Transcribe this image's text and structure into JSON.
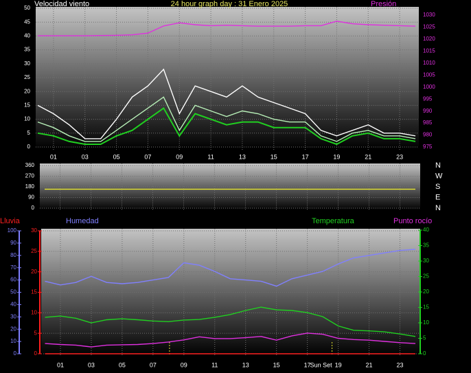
{
  "chart_data": [
    {
      "type": "line",
      "title": "24 hour graph day : 31 Enero 2025",
      "ylabel": "Velocidad viento",
      "y2label": "Presión",
      "x": [
        0,
        1,
        2,
        3,
        4,
        5,
        6,
        7,
        8,
        9,
        10,
        11,
        12,
        13,
        14,
        15,
        16,
        17,
        18,
        19,
        20,
        21,
        22,
        23,
        24
      ],
      "xlim": [
        0,
        24
      ],
      "xticks": [
        {
          "value": 1,
          "label": "01"
        },
        {
          "value": 3,
          "label": "03"
        },
        {
          "value": 5,
          "label": "05"
        },
        {
          "value": 7,
          "label": "07"
        },
        {
          "value": 9,
          "label": "09"
        },
        11,
        13,
        15,
        17,
        19,
        21,
        23
      ],
      "ylim": [
        0,
        50
      ],
      "yticks": [
        0,
        5,
        10,
        15,
        20,
        25,
        30,
        35,
        40,
        45,
        50
      ],
      "y2lim": [
        975,
        1033
      ],
      "y2ticks": [
        975,
        980,
        985,
        990,
        995,
        1000,
        1005,
        1010,
        1015,
        1020,
        1025,
        1030
      ],
      "grid": true,
      "series": [
        {
          "color": "#ffffff",
          "values": [
            15,
            12,
            8,
            3,
            3,
            10,
            18,
            22,
            28,
            12,
            22,
            20,
            18,
            22,
            18,
            16,
            14,
            12,
            6,
            4,
            6,
            8,
            5,
            5,
            4
          ]
        },
        {
          "color": "#b8f0b8",
          "values": [
            9,
            7,
            4,
            2,
            2,
            6,
            10,
            14,
            18,
            6,
            15,
            13,
            11,
            13,
            12,
            10,
            9,
            9,
            4,
            2,
            5,
            6,
            4,
            4,
            3
          ]
        },
        {
          "color": "#20d020",
          "values": [
            5,
            4,
            2,
            1,
            1,
            4,
            6,
            10,
            14,
            4,
            12,
            10,
            8,
            9,
            9,
            7,
            7,
            7,
            3,
            1,
            4,
            5,
            3,
            3,
            2
          ]
        },
        {
          "color": "#e030e0",
          "axis": "y2",
          "values": [
            1021.4,
            1021.4,
            1021.4,
            1021.4,
            1021.5,
            1021.6,
            1021.8,
            1022.5,
            1025.5,
            1026.8,
            1026,
            1025.6,
            1025.8,
            1025.6,
            1025.4,
            1025.4,
            1025.4,
            1025.6,
            1025.6,
            1027.5,
            1026.4,
            1026,
            1025.8,
            1025.6,
            1025.4
          ]
        }
      ]
    },
    {
      "type": "line",
      "x": [
        0,
        24
      ],
      "xlim": [
        0,
        24
      ],
      "xticks": [
        1,
        3,
        5,
        7,
        9,
        11,
        13,
        15,
        17,
        19,
        21,
        23
      ],
      "ylim": [
        0,
        360
      ],
      "yticks": [
        0,
        90,
        180,
        270,
        360
      ],
      "y2lim": [
        0,
        360
      ],
      "y2ticks": [
        {
          "value": 360,
          "label": "N"
        },
        {
          "value": 270,
          "label": "W"
        },
        {
          "value": 180,
          "label": "S"
        },
        {
          "value": 90,
          "label": "E"
        },
        {
          "value": 0,
          "label": "N"
        }
      ],
      "grid": true,
      "series": [
        {
          "color": "#e8e830",
          "values": [
            160,
            160
          ]
        }
      ]
    },
    {
      "type": "line",
      "x": [
        0,
        1,
        2,
        3,
        4,
        5,
        6,
        7,
        8,
        9,
        10,
        11,
        12,
        13,
        14,
        15,
        16,
        17,
        18,
        19,
        20,
        21,
        22,
        23,
        24
      ],
      "xlim": [
        0,
        24
      ],
      "xticks": [
        {
          "value": 1,
          "label": "01"
        },
        {
          "value": 3,
          "label": "03"
        },
        {
          "value": 5,
          "label": "05"
        },
        {
          "value": 7,
          "label": "07"
        },
        {
          "value": 9,
          "label": "09"
        },
        11,
        13,
        15,
        17,
        19,
        21,
        23
      ],
      "ylim": [
        0,
        30
      ],
      "yticks": [
        0,
        5,
        10,
        15,
        20,
        25,
        30
      ],
      "y2lim": [
        0,
        40
      ],
      "y2ticks": [
        0,
        5,
        10,
        15,
        20,
        25,
        30,
        35,
        40
      ],
      "y3lim": [
        0,
        100
      ],
      "y3ticks": [
        0,
        10,
        20,
        30,
        40,
        50,
        60,
        70,
        80,
        90,
        100
      ],
      "grid": true,
      "vlines": [
        {
          "x": 8.07
        },
        {
          "x": 18.6,
          "label": "Sun Set"
        }
      ],
      "series": [
        {
          "name": "Lluvia",
          "color": "#ff2020",
          "axis": "y",
          "values": [
            0,
            0,
            0,
            0,
            0,
            0,
            0,
            0,
            0,
            0,
            0,
            0,
            0,
            0,
            0,
            0,
            0,
            0,
            0,
            0,
            0,
            0,
            0,
            0,
            0
          ]
        },
        {
          "name": "Humedad",
          "color": "#8080ff",
          "axis": "y3",
          "values": [
            59,
            56,
            58,
            63,
            58,
            57,
            58,
            60,
            62,
            74,
            72,
            67,
            61,
            60,
            59,
            55,
            61,
            64,
            67,
            73,
            78,
            80,
            82,
            84,
            85
          ]
        },
        {
          "name": "Temperatura",
          "color": "#20d020",
          "axis": "y2",
          "values": [
            11.8,
            12.2,
            11.5,
            10,
            11,
            11.3,
            11,
            10.6,
            10.4,
            10.9,
            11.1,
            11.8,
            12.7,
            14,
            15.1,
            14.2,
            14,
            13.3,
            12,
            9,
            7.6,
            7.4,
            7.1,
            6.4,
            5.6
          ]
        },
        {
          "name": "Punto rocío",
          "color": "#e030e0",
          "axis": "y2",
          "values": [
            3.3,
            3,
            2.8,
            2.2,
            2.8,
            2.9,
            3,
            3.3,
            3.8,
            4.5,
            5.5,
            4.9,
            4.9,
            5.2,
            5.6,
            4.4,
            5.8,
            6.7,
            6.3,
            5,
            4.6,
            4.4,
            4,
            3.6,
            3.3
          ]
        }
      ]
    }
  ]
}
